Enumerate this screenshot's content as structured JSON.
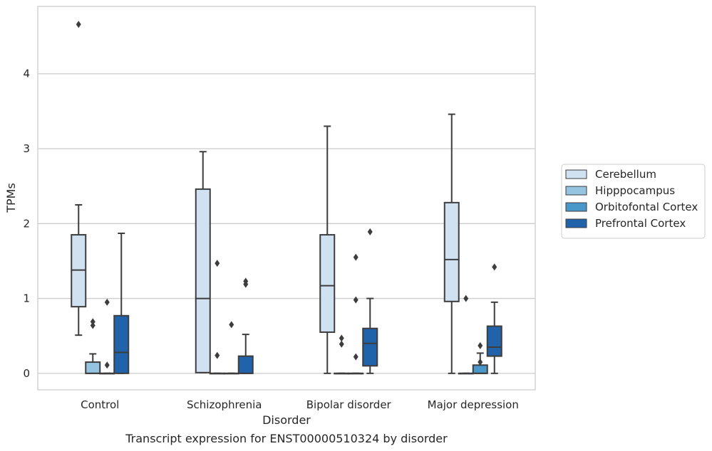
{
  "caption": "Transcript expression for ENST00000510324 by disorder",
  "chart_data": {
    "type": "boxplot",
    "title": "",
    "xlabel": "Disorder",
    "ylabel": "TPMs",
    "ylim": [
      -0.22,
      4.9
    ],
    "yticks": [
      0,
      1,
      2,
      3,
      4
    ],
    "grid": "horizontal",
    "legend_position": "right",
    "categories": [
      "Control",
      "Schizophrenia",
      "Bipolar disorder",
      "Major depression"
    ],
    "series": [
      {
        "name": "Cerebellum",
        "color": "#d0e1f2",
        "boxes": [
          {
            "whisker_low": 0.51,
            "q1": 0.89,
            "median": 1.38,
            "q3": 1.85,
            "whisker_high": 2.25,
            "outliers": [
              4.66
            ]
          },
          {
            "whisker_low": 0.01,
            "q1": 0.01,
            "median": 1.0,
            "q3": 2.46,
            "whisker_high": 2.96,
            "outliers": []
          },
          {
            "whisker_low": 0.0,
            "q1": 0.55,
            "median": 1.17,
            "q3": 1.85,
            "whisker_high": 3.3,
            "outliers": []
          },
          {
            "whisker_low": 0.0,
            "q1": 0.96,
            "median": 1.52,
            "q3": 2.28,
            "whisker_high": 3.46,
            "outliers": []
          }
        ]
      },
      {
        "name": "Hipppocampus",
        "color": "#94c4df",
        "boxes": [
          {
            "whisker_low": 0.0,
            "q1": 0.0,
            "median": 0.0,
            "q3": 0.15,
            "whisker_high": 0.26,
            "outliers": [
              0.64,
              0.69
            ]
          },
          {
            "whisker_low": 0.0,
            "q1": 0.0,
            "median": 0.0,
            "q3": 0.0,
            "whisker_high": 0.0,
            "outliers": [
              0.24,
              1.47
            ]
          },
          {
            "whisker_low": 0.0,
            "q1": 0.0,
            "median": 0.0,
            "q3": 0.0,
            "whisker_high": 0.0,
            "outliers": [
              0.39,
              0.47
            ]
          },
          {
            "whisker_low": 0.0,
            "q1": 0.0,
            "median": 0.0,
            "q3": 0.0,
            "whisker_high": 0.0,
            "outliers": [
              1.0
            ]
          }
        ]
      },
      {
        "name": "Orbitofontal Cortex",
        "color": "#4a98c9",
        "boxes": [
          {
            "whisker_low": 0.0,
            "q1": 0.0,
            "median": 0.0,
            "q3": 0.0,
            "whisker_high": 0.0,
            "outliers": [
              0.11,
              0.95
            ]
          },
          {
            "whisker_low": 0.0,
            "q1": 0.0,
            "median": 0.0,
            "q3": 0.0,
            "whisker_high": 0.0,
            "outliers": [
              0.65
            ]
          },
          {
            "whisker_low": 0.0,
            "q1": 0.0,
            "median": 0.0,
            "q3": 0.0,
            "whisker_high": 0.0,
            "outliers": [
              0.22,
              0.98,
              1.55
            ]
          },
          {
            "whisker_low": 0.0,
            "q1": 0.0,
            "median": 0.0,
            "q3": 0.11,
            "whisker_high": 0.27,
            "outliers": [
              0.15,
              0.37
            ]
          }
        ]
      },
      {
        "name": "Prefrontal Cortex",
        "color": "#2163aa",
        "boxes": [
          {
            "whisker_low": 0.0,
            "q1": 0.0,
            "median": 0.28,
            "q3": 0.77,
            "whisker_high": 1.87,
            "outliers": []
          },
          {
            "whisker_low": 0.0,
            "q1": 0.0,
            "median": 0.0,
            "q3": 0.23,
            "whisker_high": 0.52,
            "outliers": [
              1.19,
              1.23
            ]
          },
          {
            "whisker_low": 0.0,
            "q1": 0.1,
            "median": 0.4,
            "q3": 0.6,
            "whisker_high": 1.0,
            "outliers": [
              1.89
            ]
          },
          {
            "whisker_low": 0.0,
            "q1": 0.23,
            "median": 0.35,
            "q3": 0.63,
            "whisker_high": 0.95,
            "outliers": [
              1.42
            ]
          }
        ]
      }
    ]
  }
}
